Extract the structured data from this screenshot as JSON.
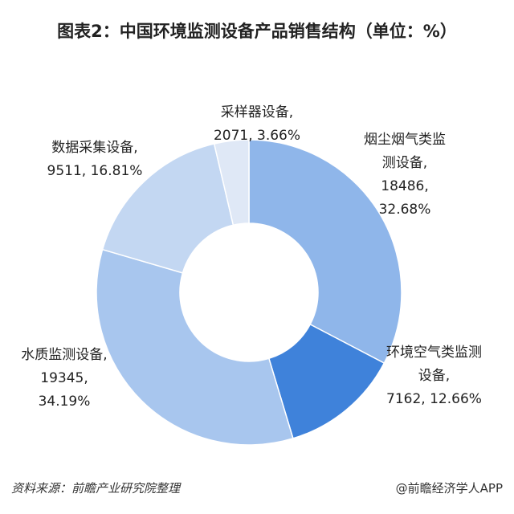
{
  "chart_data": {
    "type": "donut",
    "title": "图表2：中国环境监测设备产品销售结构（单位：%）",
    "categories": [
      "烟尘烟气类监测设备,",
      "环境空气类监测设备,",
      "水质监测设备,",
      "数据采集设备,",
      "采样器设备,"
    ],
    "values": [
      18486,
      7162,
      19345,
      9511,
      2071
    ],
    "value_labels": [
      "18486, 32.68%",
      "7162, 12.66%",
      "19345, 34.19%",
      "9511, 16.81%",
      "2071, 3.66%"
    ],
    "colors": [
      "#8fb6ea",
      "#3f82da",
      "#a8c6ee",
      "#c3d7f2",
      "#dfe8f6"
    ],
    "source": "资料来源：前瞻产业研究院整理",
    "credit": "@前瞻经济学人APP"
  }
}
